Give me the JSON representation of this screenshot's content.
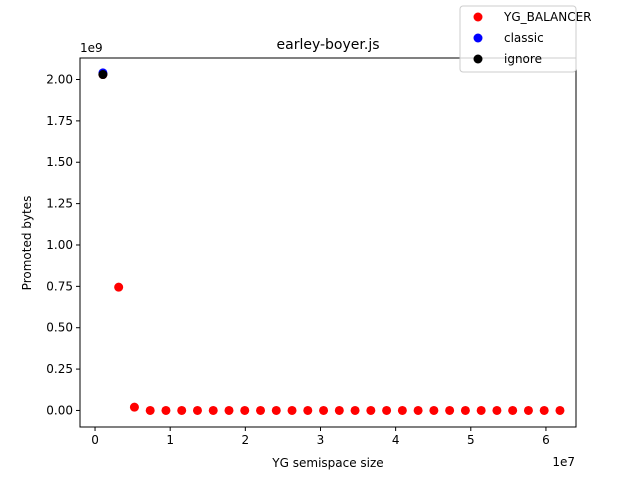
{
  "chart_data": {
    "type": "scatter",
    "title": "earley-boyer.js",
    "xlabel": "YG semispace size",
    "ylabel": "Promoted bytes",
    "x_offset_text": "1e7",
    "y_offset_text": "1e9",
    "xlim": [
      -2000000,
      64000000
    ],
    "ylim": [
      -100000000,
      2130000000
    ],
    "x_ticks": [
      0,
      10000000,
      20000000,
      30000000,
      40000000,
      50000000,
      60000000
    ],
    "x_tick_labels": [
      "0",
      "1",
      "2",
      "3",
      "4",
      "5",
      "6"
    ],
    "y_ticks": [
      0,
      250000000,
      500000000,
      750000000,
      1000000000,
      1250000000,
      1500000000,
      1750000000,
      2000000000
    ],
    "y_tick_labels": [
      "0.00",
      "0.25",
      "0.50",
      "0.75",
      "1.00",
      "1.25",
      "1.50",
      "1.75",
      "2.00"
    ],
    "grid": false,
    "legend_position": "upper-right",
    "series": [
      {
        "name": "YG_BALANCER",
        "color": "#ff0000",
        "points": [
          [
            1048576,
            2030000000
          ],
          [
            3145728,
            745000000
          ],
          [
            5242880,
            20000000
          ],
          [
            7340032,
            0
          ],
          [
            9437184,
            0
          ],
          [
            11534336,
            0
          ],
          [
            13631488,
            0
          ],
          [
            15728640,
            0
          ],
          [
            17825792,
            0
          ],
          [
            19922944,
            0
          ],
          [
            22020096,
            0
          ],
          [
            24117248,
            0
          ],
          [
            26214400,
            0
          ],
          [
            28311552,
            0
          ],
          [
            30408704,
            0
          ],
          [
            32505856,
            0
          ],
          [
            34603008,
            0
          ],
          [
            36700160,
            0
          ],
          [
            38797312,
            0
          ],
          [
            40894464,
            0
          ],
          [
            42991616,
            0
          ],
          [
            45088768,
            0
          ],
          [
            47185920,
            0
          ],
          [
            49283072,
            0
          ],
          [
            51380224,
            0
          ],
          [
            53477376,
            0
          ],
          [
            55574528,
            0
          ],
          [
            57671680,
            0
          ],
          [
            59768832,
            0
          ],
          [
            61865984,
            0
          ]
        ]
      },
      {
        "name": "classic",
        "color": "#0000ff",
        "points": [
          [
            1048576,
            2040000000
          ]
        ]
      },
      {
        "name": "ignore",
        "color": "#000000",
        "points": [
          [
            1048576,
            2030000000
          ]
        ]
      }
    ]
  }
}
